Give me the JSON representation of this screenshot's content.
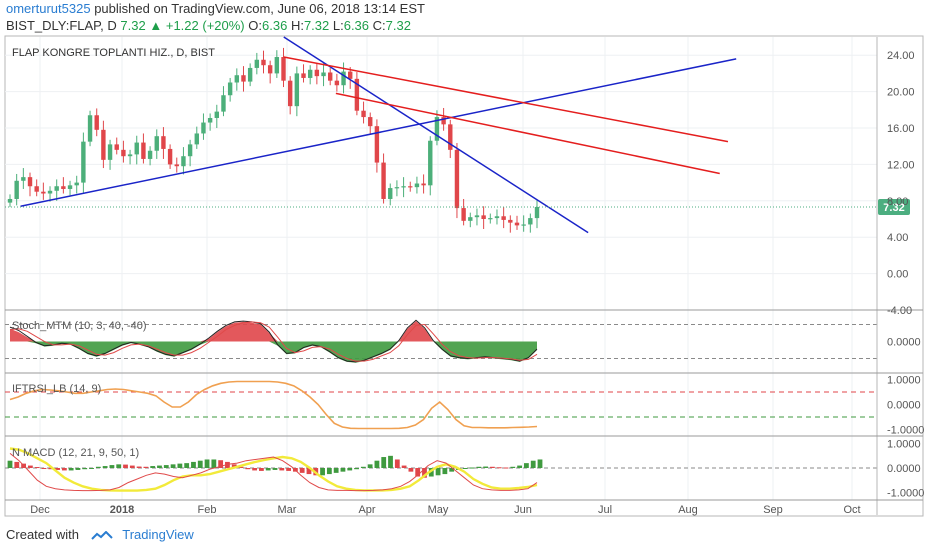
{
  "header": {
    "author": "omerturut5325",
    "published_text": "published on TradingView.com, June 06, 2018 13:14 EST",
    "symbol": "BIST_DLY:FLAP, D",
    "last": "7.32",
    "change": "+1.22 (+20%)",
    "o_label": "O:",
    "o": "6.36",
    "h_label": "H:",
    "h": "7.32",
    "l_label": "L:",
    "l": "6.36",
    "c_label": "C:",
    "c": "7.32"
  },
  "footer": {
    "created_with": "Created with",
    "brand": "TradingView"
  },
  "colors": {
    "up": "#4caf7a",
    "down": "#e0464a",
    "trend_blue": "#1a24c8",
    "trend_red": "#e41e1e",
    "price_tag": "#4cae80",
    "macd_signal": "#f2ea3a"
  },
  "chart_data": [
    {
      "type": "candlestick",
      "title": "FLAP KONGRE TOPLANTI HIZ., D, BIST",
      "last_price_label": "7.32",
      "ylim": [
        -4,
        26
      ],
      "yticks": [
        "-4.00",
        "0.00",
        "4.00",
        "8.00",
        "12.00",
        "16.00",
        "20.00",
        "24.00"
      ],
      "xticks": [
        "Dec",
        "2018",
        "Feb",
        "Mar",
        "Apr",
        "May",
        "Jun",
        "Jul",
        "Aug",
        "Sep",
        "Oct"
      ],
      "close_series": [
        8.2,
        10.2,
        10.6,
        9.6,
        9.0,
        8.8,
        9.1,
        9.6,
        9.3,
        9.7,
        10.0,
        14.5,
        17.4,
        15.8,
        12.5,
        14.2,
        13.6,
        12.9,
        13.1,
        14.4,
        12.6,
        13.5,
        15.1,
        13.7,
        12.0,
        11.8,
        12.9,
        14.2,
        15.4,
        16.6,
        17.1,
        17.8,
        19.6,
        21.0,
        21.8,
        21.1,
        22.6,
        23.5,
        22.9,
        22.0,
        23.8,
        21.2,
        18.4,
        22.0,
        21.5,
        22.4,
        21.7,
        22.1,
        21.2,
        20.7,
        22.2,
        21.4,
        17.9,
        17.2,
        16.2,
        12.2,
        8.2,
        9.4,
        9.5,
        9.6,
        9.5,
        9.9,
        9.7,
        14.6,
        17.2,
        16.4,
        13.6,
        7.2,
        5.8,
        6.2,
        6.4,
        6.0,
        6.1,
        6.3,
        5.9,
        5.6,
        5.3,
        5.4,
        6.1,
        7.32
      ],
      "trendlines": [
        {
          "color": "blue",
          "from": [
            "2017-11-25",
            7.4
          ],
          "to": [
            "2018-08-13",
            23.6
          ]
        },
        {
          "color": "blue",
          "from": [
            "2018-03-01",
            26.0
          ],
          "to": [
            "2018-06-20",
            4.5
          ]
        },
        {
          "color": "red",
          "from": [
            "2018-03-01",
            23.8
          ],
          "to": [
            "2018-08-10",
            14.5
          ]
        },
        {
          "color": "red",
          "from": [
            "2018-03-20",
            19.8
          ],
          "to": [
            "2018-08-07",
            11.0
          ]
        }
      ],
      "hline": 7.32
    },
    {
      "type": "area",
      "title": "Stoch_MTM (10, 3, 40, -40)",
      "yticks": [
        "0.0000"
      ],
      "levels": [
        40,
        -40
      ],
      "ylim": [
        -60,
        60
      ],
      "histogram": [
        30,
        22,
        10,
        -4,
        -12,
        -10,
        -6,
        -8,
        -18,
        -30,
        -36,
        -30,
        -20,
        -10,
        -4,
        -8,
        -14,
        -24,
        -32,
        -36,
        -28,
        -20,
        -8,
        6,
        22,
        36,
        44,
        46,
        44,
        40,
        20,
        -10,
        -30,
        -28,
        -16,
        -10,
        -14,
        -26,
        -40,
        -48,
        -50,
        -46,
        -38,
        -30,
        -20,
        0,
        30,
        48,
        30,
        0,
        -20,
        -36,
        -40,
        -42,
        -40,
        -38,
        -40,
        -42,
        -44,
        -48,
        -40,
        -20
      ],
      "lineA": [
        34,
        26,
        12,
        -2,
        -10,
        -8,
        -4,
        -6,
        -16,
        -28,
        -34,
        -28,
        -18,
        -8,
        -2,
        -6,
        -12,
        -22,
        -30,
        -34,
        -26,
        -18,
        -6,
        8,
        24,
        38,
        46,
        48,
        46,
        42,
        22,
        -8,
        -28,
        -26,
        -14,
        -8,
        -12,
        -24,
        -38,
        -46,
        -48,
        -44,
        -36,
        -28,
        -18,
        2,
        32,
        50,
        32,
        2,
        -18,
        -34,
        -38,
        -40,
        -38,
        -36,
        -38,
        -40,
        -42,
        -46,
        -38,
        -18
      ],
      "lineB": [
        28,
        30,
        24,
        12,
        0,
        -8,
        -8,
        -6,
        -10,
        -20,
        -30,
        -32,
        -26,
        -16,
        -8,
        -6,
        -10,
        -18,
        -26,
        -32,
        -32,
        -26,
        -16,
        -2,
        12,
        28,
        38,
        44,
        46,
        44,
        34,
        10,
        -16,
        -26,
        -22,
        -14,
        -12,
        -18,
        -30,
        -40,
        -46,
        -46,
        -42,
        -34,
        -26,
        -10,
        16,
        38,
        40,
        18,
        -6,
        -24,
        -34,
        -38,
        -39,
        -38,
        -38,
        -39,
        -41,
        -44,
        -42,
        -30
      ]
    },
    {
      "type": "line",
      "title": "IFTRSI_LB (14, 9)",
      "yticks": [
        "1.0000",
        "0.0000",
        "-1.0000"
      ],
      "ylim": [
        -1.1,
        1.1
      ],
      "levels": [
        0.5,
        -0.5
      ],
      "values": [
        0.2,
        0.3,
        0.45,
        0.55,
        0.6,
        0.58,
        0.55,
        0.5,
        0.45,
        0.45,
        0.5,
        0.55,
        0.6,
        0.62,
        0.6,
        0.55,
        0.5,
        0.45,
        0.35,
        0.1,
        -0.1,
        -0.1,
        0.1,
        0.4,
        0.6,
        0.75,
        0.85,
        0.9,
        0.92,
        0.92,
        0.92,
        0.92,
        0.92,
        0.9,
        0.85,
        0.75,
        0.55,
        0.3,
        0.0,
        -0.4,
        -0.75,
        -0.9,
        -0.95,
        -0.96,
        -0.96,
        -0.96,
        -0.96,
        -0.96,
        -0.95,
        -0.92,
        -0.82,
        -0.6,
        -0.15,
        0.1,
        -0.2,
        -0.6,
        -0.85,
        -0.92,
        -0.92,
        -0.93,
        -0.93,
        -0.93,
        -0.92,
        -0.91,
        -0.9,
        -0.88
      ]
    },
    {
      "type": "bar",
      "title": "N MACD (12, 21, 9, 50, 1)",
      "yticks": [
        "1.0000",
        "0.0000",
        "-1.0000"
      ],
      "ylim": [
        -1.15,
        1.15
      ],
      "histogram": [
        0.3,
        0.25,
        0.18,
        0.1,
        0.04,
        -0.02,
        -0.05,
        -0.08,
        -0.1,
        -0.1,
        -0.08,
        -0.05,
        -0.02,
        0.05,
        0.08,
        0.12,
        0.15,
        0.14,
        0.1,
        0.06,
        0.05,
        0.08,
        0.1,
        0.12,
        0.15,
        0.18,
        0.2,
        0.25,
        0.3,
        0.35,
        0.35,
        0.32,
        0.25,
        0.15,
        0.05,
        -0.05,
        -0.1,
        -0.12,
        -0.1,
        -0.08,
        -0.1,
        -0.12,
        -0.15,
        -0.2,
        -0.25,
        -0.3,
        -0.3,
        -0.25,
        -0.2,
        -0.15,
        -0.1,
        -0.05,
        0.05,
        0.15,
        0.3,
        0.45,
        0.5,
        0.35,
        0.1,
        -0.15,
        -0.35,
        -0.4,
        -0.35,
        -0.3,
        -0.25,
        -0.15,
        -0.08,
        -0.04,
        0.02,
        0.05,
        0.06,
        0.05,
        0.03,
        0.02,
        0.05,
        0.1,
        0.2,
        0.3,
        0.35
      ],
      "macd_line": [
        0.6,
        0.3,
        -0.1,
        -0.5,
        -0.75,
        -0.85,
        -0.9,
        -0.92,
        -0.93,
        -0.93,
        -0.92,
        -0.9,
        -0.8,
        -0.6,
        -0.45,
        -0.3,
        -0.2,
        -0.25,
        -0.35,
        -0.4,
        -0.3,
        -0.2,
        -0.05,
        0.05,
        0.15,
        0.2,
        0.3,
        0.35,
        0.4,
        0.45,
        0.3,
        0.05,
        -0.3,
        -0.6,
        -0.8,
        -0.9,
        -0.92,
        -0.92,
        -0.93,
        -0.93,
        -0.92,
        -0.9,
        -0.85,
        -0.75,
        -0.55,
        -0.25,
        0.1,
        0.3,
        0.2,
        -0.1,
        -0.4,
        -0.7,
        -0.85,
        -0.9,
        -0.92,
        -0.92,
        -0.9,
        -0.85,
        -0.6
      ],
      "signal_line": [
        0.8,
        0.75,
        0.6,
        0.4,
        0.2,
        -0.1,
        -0.4,
        -0.6,
        -0.75,
        -0.85,
        -0.9,
        -0.92,
        -0.93,
        -0.93,
        -0.93,
        -0.9,
        -0.85,
        -0.7,
        -0.5,
        -0.35,
        -0.3,
        -0.3,
        -0.25,
        -0.15,
        -0.05,
        0.05,
        0.15,
        0.25,
        0.33,
        0.4,
        0.45,
        0.4,
        0.25,
        0.0,
        -0.3,
        -0.55,
        -0.75,
        -0.85,
        -0.9,
        -0.92,
        -0.92,
        -0.92,
        -0.9,
        -0.85,
        -0.75,
        -0.5,
        -0.2,
        0.05,
        0.15,
        0.05,
        -0.15,
        -0.45,
        -0.65,
        -0.8,
        -0.85,
        -0.85,
        -0.82,
        -0.78,
        -0.7
      ]
    }
  ]
}
